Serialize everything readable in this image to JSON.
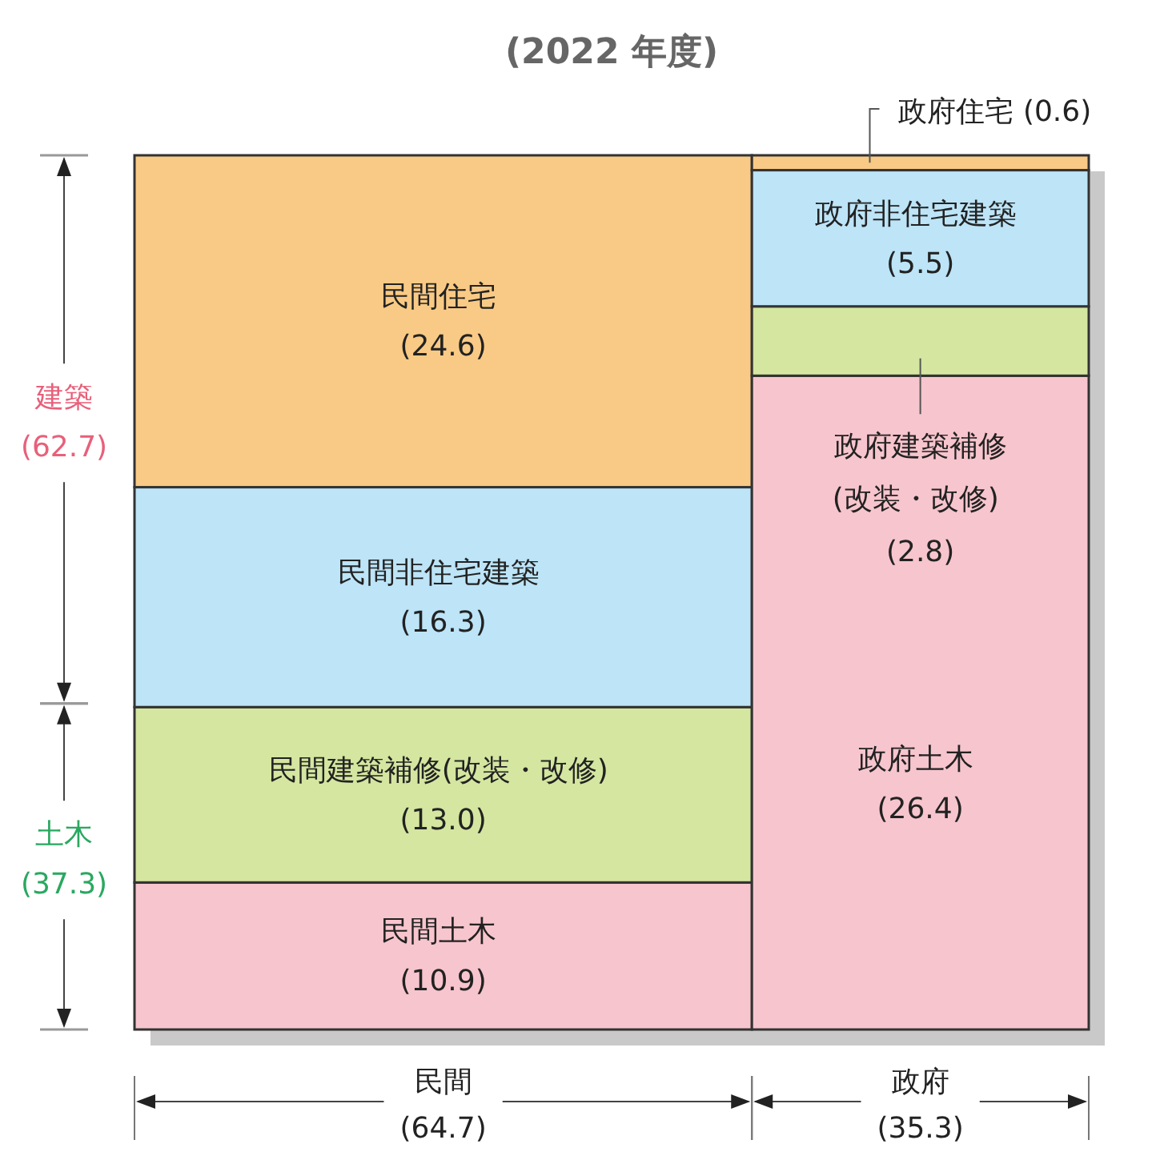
{
  "chart_data": [
    {
      "type": "other",
      "title": "(2022 年度)",
      "categories": [
        "民間",
        "政府"
      ],
      "values": [
        64.7,
        35.3
      ],
      "value_labels": [
        "(64.7)",
        "(35.3)"
      ],
      "series": [
        {
          "color": "#f7c5cd",
          "values": [
            10.9,
            26.4
          ],
          "value_labels": [
            "民間土木 (10.9)",
            "政府土木 (26.4)"
          ]
        },
        {
          "color": "#d4e6a0",
          "values": [
            13.0,
            2.8
          ],
          "value_labels": [
            "民間建築補修(改装・改修) (13.0)",
            "政府建築補修(改装・改修) (2.8)"
          ]
        },
        {
          "color": "#bde4f7",
          "values": [
            16.3,
            5.5
          ],
          "value_labels": [
            "民間非住宅建築 (16.3)",
            "政府非住宅建築 (5.5)"
          ]
        },
        {
          "color": "#f9ca85",
          "values": [
            24.6,
            0.6
          ],
          "value_labels": [
            "民間住宅 (24.6)",
            "政府住宅 (0.6)"
          ]
        }
      ]
    },
    {
      "type": "other",
      "categories": [
        "建築",
        "土木"
      ],
      "values": [
        62.7,
        37.3
      ],
      "value_labels": [
        "(62.7)",
        "(37.3)"
      ],
      "colors": [
        "#e8607a",
        "#2aa860"
      ]
    }
  ]
}
